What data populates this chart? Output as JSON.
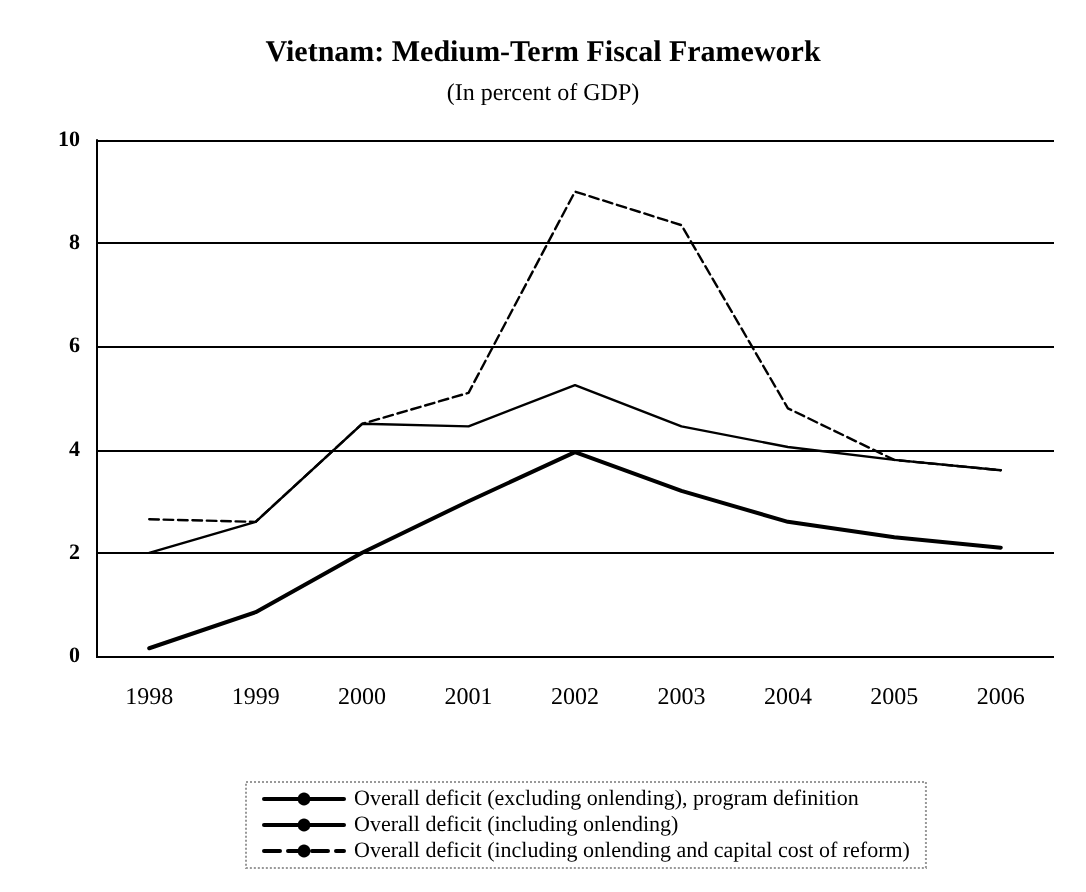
{
  "chart_data": {
    "type": "line",
    "title": "Vietnam: Medium-Term Fiscal Framework",
    "subtitle": "(In percent of GDP)",
    "categories": [
      "1998",
      "1999",
      "2000",
      "2001",
      "2002",
      "2003",
      "2004",
      "2005",
      "2006"
    ],
    "series": [
      {
        "name": "Overall deficit (excluding onlending), program definition",
        "color": "#000000",
        "line_style": "solid",
        "values": [
          0.15,
          0.85,
          2.0,
          3.0,
          3.95,
          3.2,
          2.6,
          2.3,
          2.1
        ]
      },
      {
        "name": "Overall deficit (including onlending)",
        "color": "#000000",
        "line_style": "solid",
        "values": [
          2.0,
          2.6,
          4.5,
          4.45,
          5.25,
          4.45,
          4.05,
          3.8,
          3.6
        ]
      },
      {
        "name": "Overall deficit (including onlending and capital cost of reform)",
        "color": "#000000",
        "line_style": "dashed",
        "values": [
          2.65,
          2.6,
          4.5,
          5.1,
          9.0,
          8.35,
          4.8,
          3.8,
          3.6
        ]
      }
    ],
    "ylim": [
      0,
      10
    ],
    "yticks": [
      0,
      2,
      4,
      6,
      8,
      10
    ],
    "grid": "y",
    "legend": "bottom",
    "marker": "none"
  }
}
